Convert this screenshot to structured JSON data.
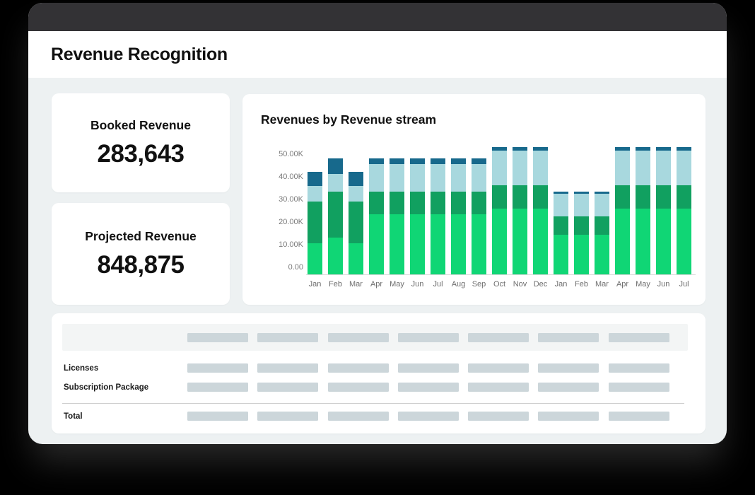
{
  "window": {
    "title": "Revenue Recognition"
  },
  "kpis": [
    {
      "label": "Booked Revenue",
      "value": "283,643"
    },
    {
      "label": "Projected Revenue",
      "value": "848,875"
    }
  ],
  "chart_data": {
    "type": "bar",
    "stacked": true,
    "title": "Revenues by Revenue stream",
    "categories": [
      "Jan",
      "Feb",
      "Mar",
      "Apr",
      "May",
      "Jun",
      "Jul",
      "Aug",
      "Sep",
      "Oct",
      "Nov",
      "Dec",
      "Jan",
      "Feb",
      "Mar",
      "Apr",
      "May",
      "Jun",
      "Jul"
    ],
    "unit": "thousands",
    "series": [
      {
        "name": "segment-1-bottom",
        "color": "#10d675",
        "values": [
          10.7,
          13.0,
          10.7,
          23.5,
          23.5,
          23.5,
          23.5,
          23.5,
          23.5,
          26,
          26,
          26,
          14.5,
          14.5,
          14.5,
          26,
          26,
          26,
          26
        ]
      },
      {
        "name": "segment-2",
        "color": "#11a060",
        "values": [
          18.4,
          20.4,
          18.4,
          10,
          10,
          10,
          10,
          10,
          10,
          10,
          10,
          10,
          8,
          8,
          8,
          10,
          10,
          10,
          10
        ]
      },
      {
        "name": "segment-3",
        "color": "#a8d8de",
        "values": [
          6.8,
          7.6,
          6.8,
          12,
          12,
          12,
          12,
          12,
          12,
          15.5,
          15.5,
          15.5,
          10,
          10,
          10,
          15.5,
          15.5,
          15.5,
          15.5
        ]
      },
      {
        "name": "segment-4-top",
        "color": "#17698c",
        "values": [
          6.3,
          7.0,
          6.3,
          2.5,
          2.5,
          2.5,
          2.5,
          2.5,
          2.5,
          1.5,
          1.5,
          1.5,
          1,
          1,
          1,
          1.5,
          1.5,
          1.5,
          1.5
        ]
      }
    ],
    "y_ticks": [
      {
        "label": "0.00",
        "v": 0
      },
      {
        "label": "10.00K",
        "v": 10
      },
      {
        "label": "20.00K",
        "v": 20
      },
      {
        "label": "30.00K",
        "v": 30
      },
      {
        "label": "40.00K",
        "v": 40
      },
      {
        "label": "50.00K",
        "v": 50
      }
    ],
    "ylim": [
      0,
      56
    ],
    "grid": "off",
    "legend": "none"
  },
  "table": {
    "placeholder_columns": 7,
    "rows": [
      {
        "label": "Licenses"
      },
      {
        "label": "Subscription Package"
      },
      {
        "label": "Total"
      }
    ]
  },
  "colors": {
    "outer_background": "#000000",
    "window_topbar": "#333235",
    "content_background": "#edf1f2",
    "card": "#ffffff",
    "table_strip": "#f3f5f5",
    "placeholder_bar": "#ccd6da",
    "axis_text": "#7a7a7a"
  }
}
